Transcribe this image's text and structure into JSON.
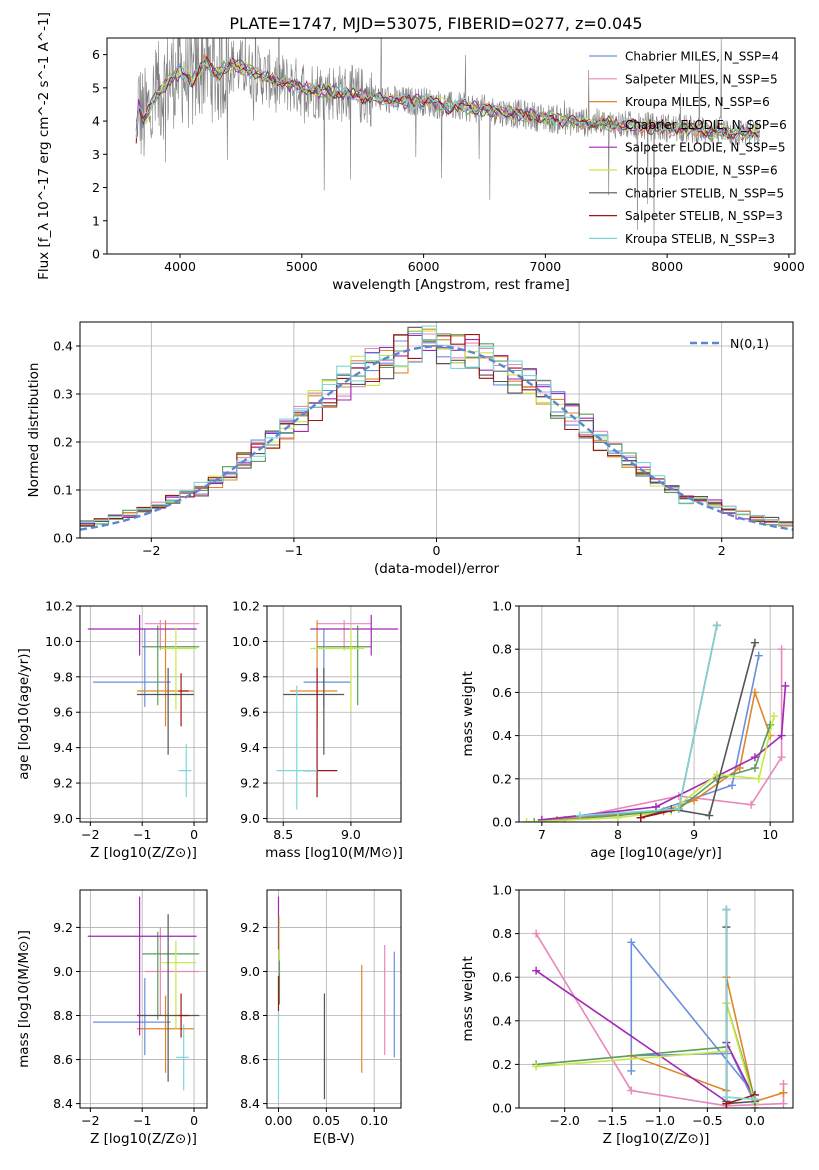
{
  "figure": {
    "title": "PLATE=1747, MJD=53075, FIBERID=0277, z=0.045"
  },
  "legend_series": [
    {
      "label": "Chabrier MILES, N_SSP=4",
      "color": "#6a8fde"
    },
    {
      "label": "Salpeter MILES, N_SSP=5",
      "color": "#e887bb"
    },
    {
      "label": "Kroupa MILES, N_SSP=6",
      "color": "#e0862a"
    },
    {
      "label": "Chabrier ELODIE, N_SSP=6",
      "color": "#5a9e5a"
    },
    {
      "label": "Salpeter ELODIE, N_SSP=5",
      "color": "#a127b5"
    },
    {
      "label": "Kroupa ELODIE, N_SSP=6",
      "color": "#c9e64a"
    },
    {
      "label": "Chabrier STELIB, N_SSP=5",
      "color": "#555555"
    },
    {
      "label": "Salpeter STELIB, N_SSP=3",
      "color": "#9e1515"
    },
    {
      "label": "Kroupa STELIB, N_SSP=3",
      "color": "#7ad8db"
    }
  ],
  "chart_data": [
    {
      "id": "spectrum",
      "type": "line",
      "xlabel": "wavelength [Angstrom, rest frame]",
      "ylabel": "Flux [f_λ 10^-17 erg cm^-2 s^-1 A^-1]",
      "xlim": [
        3400,
        9050
      ],
      "ylim": [
        0,
        6.5
      ],
      "xticks": [
        4000,
        5000,
        6000,
        7000,
        8000,
        9000
      ],
      "yticks": [
        0,
        1,
        2,
        3,
        4,
        5,
        6
      ],
      "grid": false,
      "legend": "upper right",
      "data_color": "#808080",
      "continuum": {
        "x": [
          3650,
          3700,
          3800,
          3900,
          4000,
          4100,
          4200,
          4300,
          4400,
          4500,
          4600,
          4700,
          4800,
          4900,
          5000,
          5200,
          5400,
          5600,
          5800,
          6000,
          6200,
          6400,
          6600,
          6800,
          7000,
          7200,
          7400,
          7600,
          7800,
          8000,
          8200,
          8400,
          8600,
          8800,
          9000
        ],
        "y": [
          4.6,
          4.0,
          4.7,
          5.2,
          5.5,
          5.2,
          5.8,
          5.4,
          5.7,
          5.6,
          5.5,
          5.3,
          5.2,
          5.1,
          5.0,
          4.9,
          4.8,
          4.7,
          4.6,
          4.6,
          4.45,
          4.4,
          4.3,
          4.2,
          4.1,
          4.0,
          3.95,
          3.9,
          3.85,
          3.8,
          3.75,
          3.7,
          3.65,
          3.6,
          3.55
        ]
      }
    },
    {
      "id": "residuals",
      "type": "histogram",
      "xlabel": "(data-model)/error",
      "ylabel": "Normed distribution",
      "xlim": [
        -2.5,
        2.5
      ],
      "ylim": [
        0,
        0.45
      ],
      "xticks": [
        -2,
        -1,
        0,
        1,
        2
      ],
      "yticks": [
        0.0,
        0.1,
        0.2,
        0.3,
        0.4
      ],
      "grid": true,
      "legend": "upper right",
      "gaussian_label": "N(0,1)",
      "gaussian_color": "#5b87d1",
      "bin_edges_range": [
        -2.5,
        2.5
      ],
      "nbins": 50
    },
    {
      "id": "age-vs-Z",
      "type": "errorbar",
      "xlabel": "Z [log10(Z/Z⊙)]",
      "ylabel": "age [log10(age/yr)]",
      "xlim": [
        -2.2,
        0.25
      ],
      "ylim": [
        8.98,
        10.2
      ],
      "xticks": [
        -2,
        -1,
        0
      ],
      "yticks": [
        9.0,
        9.2,
        9.4,
        9.6,
        9.8,
        10.0,
        10.2
      ],
      "grid": true,
      "points": [
        {
          "s": 0,
          "x": -0.95,
          "xerr": [
            1.0,
            0.5
          ],
          "y": 9.77,
          "yerr": [
            0.14,
            0.3
          ]
        },
        {
          "s": 1,
          "x": -0.65,
          "xerr": [
            0.3,
            0.75
          ],
          "y": 10.1,
          "yerr": [
            0.15,
            0.02
          ]
        },
        {
          "s": 2,
          "x": -0.55,
          "xerr": [
            0.55,
            0.55
          ],
          "y": 9.72,
          "yerr": [
            0.2,
            0.4
          ]
        },
        {
          "s": 3,
          "x": -0.7,
          "xerr": [
            0.3,
            0.8
          ],
          "y": 9.97,
          "yerr": [
            0.33,
            0.12
          ]
        },
        {
          "s": 4,
          "x": -1.05,
          "xerr": [
            1.0,
            1.1
          ],
          "y": 10.07,
          "yerr": [
            0.15,
            0.08
          ]
        },
        {
          "s": 5,
          "x": -0.35,
          "xerr": [
            0.3,
            0.4
          ],
          "y": 9.96,
          "yerr": [
            0.35,
            0.12
          ]
        },
        {
          "s": 6,
          "x": -0.5,
          "xerr": [
            0.6,
            0.5
          ],
          "y": 9.7,
          "yerr": [
            0.34,
            0.15
          ]
        },
        {
          "s": 7,
          "x": -0.25,
          "xerr": [
            0.05,
            0.15
          ],
          "y": 9.72,
          "yerr": [
            0.2,
            0.1
          ]
        },
        {
          "s": 8,
          "x": -0.15,
          "xerr": [
            0.15,
            0.1
          ],
          "y": 9.27,
          "yerr": [
            0.15,
            0.15
          ]
        }
      ]
    },
    {
      "id": "age-vs-mass",
      "type": "errorbar",
      "xlabel": "mass [log10(M/M⊙)]",
      "ylabel": "",
      "xlim": [
        8.38,
        9.37
      ],
      "ylim": [
        8.98,
        10.2
      ],
      "xticks": [
        8.5,
        9.0
      ],
      "yticks": [
        9.0,
        9.2,
        9.4,
        9.6,
        9.8,
        10.0,
        10.2
      ],
      "grid": true,
      "points": [
        {
          "s": 0,
          "x": 8.8,
          "xerr": [
            0.15,
            0.2
          ],
          "y": 9.77,
          "yerr": [
            0.14,
            0.3
          ]
        },
        {
          "s": 1,
          "x": 8.95,
          "xerr": [
            0.2,
            0.2
          ],
          "y": 10.1,
          "yerr": [
            0.15,
            0.02
          ]
        },
        {
          "s": 2,
          "x": 8.75,
          "xerr": [
            0.2,
            0.15
          ],
          "y": 9.72,
          "yerr": [
            0.2,
            0.4
          ]
        },
        {
          "s": 3,
          "x": 9.05,
          "xerr": [
            0.3,
            0.1
          ],
          "y": 9.97,
          "yerr": [
            0.33,
            0.12
          ]
        },
        {
          "s": 4,
          "x": 9.15,
          "xerr": [
            0.45,
            0.2
          ],
          "y": 10.07,
          "yerr": [
            0.15,
            0.08
          ]
        },
        {
          "s": 5,
          "x": 9.0,
          "xerr": [
            0.3,
            0.1
          ],
          "y": 9.96,
          "yerr": [
            0.35,
            0.12
          ]
        },
        {
          "s": 6,
          "x": 8.8,
          "xerr": [
            0.3,
            0.15
          ],
          "y": 9.7,
          "yerr": [
            0.34,
            0.15
          ]
        },
        {
          "s": 7,
          "x": 8.75,
          "xerr": [
            0.1,
            0.15
          ],
          "y": 9.27,
          "yerr": [
            0.15,
            0.58
          ]
        },
        {
          "s": 8,
          "x": 8.6,
          "xerr": [
            0.15,
            0.15
          ],
          "y": 9.27,
          "yerr": [
            0.22,
            0.48
          ]
        }
      ]
    },
    {
      "id": "massweight-vs-age",
      "type": "line",
      "xlabel": "age [log10(age/yr)]",
      "ylabel": "mass weight",
      "xlim": [
        6.7,
        10.3
      ],
      "ylim": [
        0,
        1.0
      ],
      "xticks": [
        7,
        8,
        9,
        10
      ],
      "yticks": [
        0.0,
        0.2,
        0.4,
        0.6,
        0.8,
        1.0
      ],
      "grid": true,
      "series": [
        {
          "s": 0,
          "x": [
            7.0,
            8.5,
            9.5,
            9.85
          ],
          "y": [
            0.01,
            0.05,
            0.17,
            0.77
          ]
        },
        {
          "s": 1,
          "x": [
            7.3,
            8.8,
            9.75,
            10.15,
            10.15
          ],
          "y": [
            0.01,
            0.12,
            0.08,
            0.3,
            0.8
          ]
        },
        {
          "s": 2,
          "x": [
            7.2,
            8.6,
            9.0,
            9.6,
            9.8,
            10.0
          ],
          "y": [
            0.01,
            0.05,
            0.1,
            0.25,
            0.6,
            0.4
          ]
        },
        {
          "s": 3,
          "x": [
            6.9,
            8.0,
            8.8,
            9.3,
            9.8,
            10.0
          ],
          "y": [
            0.0,
            0.03,
            0.06,
            0.2,
            0.25,
            0.45
          ]
        },
        {
          "s": 4,
          "x": [
            7.0,
            8.5,
            9.8,
            10.15,
            10.2
          ],
          "y": [
            0.01,
            0.07,
            0.3,
            0.4,
            0.63
          ]
        },
        {
          "s": 5,
          "x": [
            6.8,
            8.0,
            8.7,
            9.3,
            9.85,
            10.05
          ],
          "y": [
            0.0,
            0.02,
            0.05,
            0.22,
            0.2,
            0.49
          ]
        },
        {
          "s": 6,
          "x": [
            8.3,
            8.7,
            9.2,
            9.8
          ],
          "y": [
            0.02,
            0.06,
            0.03,
            0.83
          ]
        },
        {
          "s": 7,
          "x": [
            8.3,
            8.8,
            9.3
          ],
          "y": [
            0.02,
            0.06,
            0.91
          ]
        },
        {
          "s": 8,
          "x": [
            7.5,
            8.8,
            9.3
          ],
          "y": [
            0.03,
            0.06,
            0.91
          ]
        }
      ]
    },
    {
      "id": "mass-vs-Z",
      "type": "errorbar",
      "xlabel": "Z [log10(Z/Z⊙)]",
      "ylabel": "mass [log10(M/M⊙)]",
      "xlim": [
        -2.2,
        0.25
      ],
      "ylim": [
        8.38,
        9.37
      ],
      "xticks": [
        -2,
        -1,
        0
      ],
      "yticks": [
        8.4,
        8.6,
        8.8,
        9.0,
        9.2
      ],
      "grid": true,
      "points": [
        {
          "s": 0,
          "x": -0.95,
          "xerr": [
            1.0,
            0.5
          ],
          "y": 8.77,
          "yerr": [
            0.15,
            0.2
          ]
        },
        {
          "s": 1,
          "x": -0.65,
          "xerr": [
            0.3,
            0.75
          ],
          "y": 9.0,
          "yerr": [
            0.2,
            0.2
          ]
        },
        {
          "s": 2,
          "x": -0.55,
          "xerr": [
            0.55,
            0.55
          ],
          "y": 8.74,
          "yerr": [
            0.2,
            0.15
          ]
        },
        {
          "s": 3,
          "x": -0.7,
          "xerr": [
            0.3,
            0.8
          ],
          "y": 9.08,
          "yerr": [
            0.3,
            0.1
          ]
        },
        {
          "s": 4,
          "x": -1.05,
          "xerr": [
            1.0,
            1.1
          ],
          "y": 9.16,
          "yerr": [
            0.45,
            0.18
          ]
        },
        {
          "s": 5,
          "x": -0.35,
          "xerr": [
            0.3,
            0.4
          ],
          "y": 9.04,
          "yerr": [
            0.3,
            0.1
          ]
        },
        {
          "s": 6,
          "x": -0.5,
          "xerr": [
            0.6,
            0.6
          ],
          "y": 8.8,
          "yerr": [
            0.3,
            0.46
          ]
        },
        {
          "s": 7,
          "x": -0.25,
          "xerr": [
            0.05,
            0.15
          ],
          "y": 8.8,
          "yerr": [
            0.1,
            0.1
          ]
        },
        {
          "s": 8,
          "x": -0.2,
          "xerr": [
            0.15,
            0.1
          ],
          "y": 8.61,
          "yerr": [
            0.15,
            0.15
          ]
        }
      ]
    },
    {
      "id": "mass-vs-ebv",
      "type": "errorbar",
      "xlabel": "E(B-V)",
      "ylabel": "",
      "xlim": [
        -0.012,
        0.128
      ],
      "ylim": [
        8.38,
        9.37
      ],
      "xticks": [
        0.0,
        0.05,
        0.1
      ],
      "yticks": [
        8.4,
        8.6,
        8.8,
        9.0,
        9.2
      ],
      "grid": true,
      "points": [
        {
          "s": 0,
          "x": 0.121,
          "y": 8.84,
          "yerr": [
            0.23,
            0.25
          ]
        },
        {
          "s": 1,
          "x": 0.111,
          "y": 8.86,
          "yerr": [
            0.24,
            0.26
          ]
        },
        {
          "s": 2,
          "x": 0.087,
          "y": 8.78,
          "yerr": [
            0.24,
            0.25
          ]
        },
        {
          "s": 3,
          "x": 0.001,
          "y": 9.0,
          "yerr": [
            0.15,
            0.25
          ]
        },
        {
          "s": 4,
          "x": 0.0,
          "y": 9.2,
          "yerr": [
            0.1,
            0.14
          ]
        },
        {
          "s": 5,
          "x": 0.001,
          "y": 9.15,
          "yerr": [
            0.1,
            0.1
          ]
        },
        {
          "s": 6,
          "x": 0.048,
          "y": 8.66,
          "yerr": [
            0.24,
            0.24
          ]
        },
        {
          "s": 7,
          "x": 0.0,
          "y": 8.9,
          "yerr": [
            0.08,
            0.08
          ]
        },
        {
          "s": 8,
          "x": 0.0,
          "y": 8.62,
          "yerr": [
            0.2,
            0.2
          ]
        }
      ]
    },
    {
      "id": "massweight-vs-Z",
      "type": "line",
      "xlabel": "Z [log10(Z/Z⊙)]",
      "ylabel": "mass weight",
      "xlim": [
        -2.48,
        0.4
      ],
      "ylim": [
        0,
        1.0
      ],
      "xticks": [
        -2.0,
        -1.5,
        -1.0,
        -0.5,
        0.0
      ],
      "yticks": [
        0.0,
        0.2,
        0.4,
        0.6,
        0.8,
        1.0
      ],
      "grid": true,
      "series": [
        {
          "s": 0,
          "x": [
            0.0,
            -1.3,
            -1.3,
            -1.3,
            -0.3,
            -0.3,
            0.0
          ],
          "y": [
            0.06,
            0.76,
            0.17,
            0.24,
            0.25,
            0.3,
            0.02
          ]
        },
        {
          "s": 1,
          "x": [
            -2.3,
            -1.3,
            -0.3,
            0.3,
            0.3
          ],
          "y": [
            0.8,
            0.08,
            0.01,
            0.02,
            0.11
          ]
        },
        {
          "s": 2,
          "x": [
            -1.3,
            -0.3,
            -0.3,
            0.0,
            0.3
          ],
          "y": [
            0.24,
            0.08,
            0.6,
            0.03,
            0.07
          ]
        },
        {
          "s": 3,
          "x": [
            -2.3,
            -0.3,
            -0.3,
            0.0
          ],
          "y": [
            0.2,
            0.28,
            0.48,
            0.04
          ]
        },
        {
          "s": 4,
          "x": [
            -2.3,
            -0.3,
            -0.3,
            0.0,
            0.0
          ],
          "y": [
            0.63,
            0.03,
            0.3,
            0.04,
            0.0
          ]
        },
        {
          "s": 5,
          "x": [
            -2.3,
            -0.3,
            -0.3,
            0.0
          ],
          "y": [
            0.19,
            0.26,
            0.48,
            0.02
          ]
        },
        {
          "s": 6,
          "x": [
            -0.3,
            -0.3,
            -0.3,
            0.0
          ],
          "y": [
            0.83,
            0.03,
            0.02,
            0.03
          ]
        },
        {
          "s": 7,
          "x": [
            -0.3,
            -0.3,
            0.0
          ],
          "y": [
            0.91,
            0.02,
            0.06
          ]
        },
        {
          "s": 8,
          "x": [
            -0.3,
            -0.3,
            0.0
          ],
          "y": [
            0.91,
            0.05,
            0.04
          ]
        }
      ]
    }
  ]
}
